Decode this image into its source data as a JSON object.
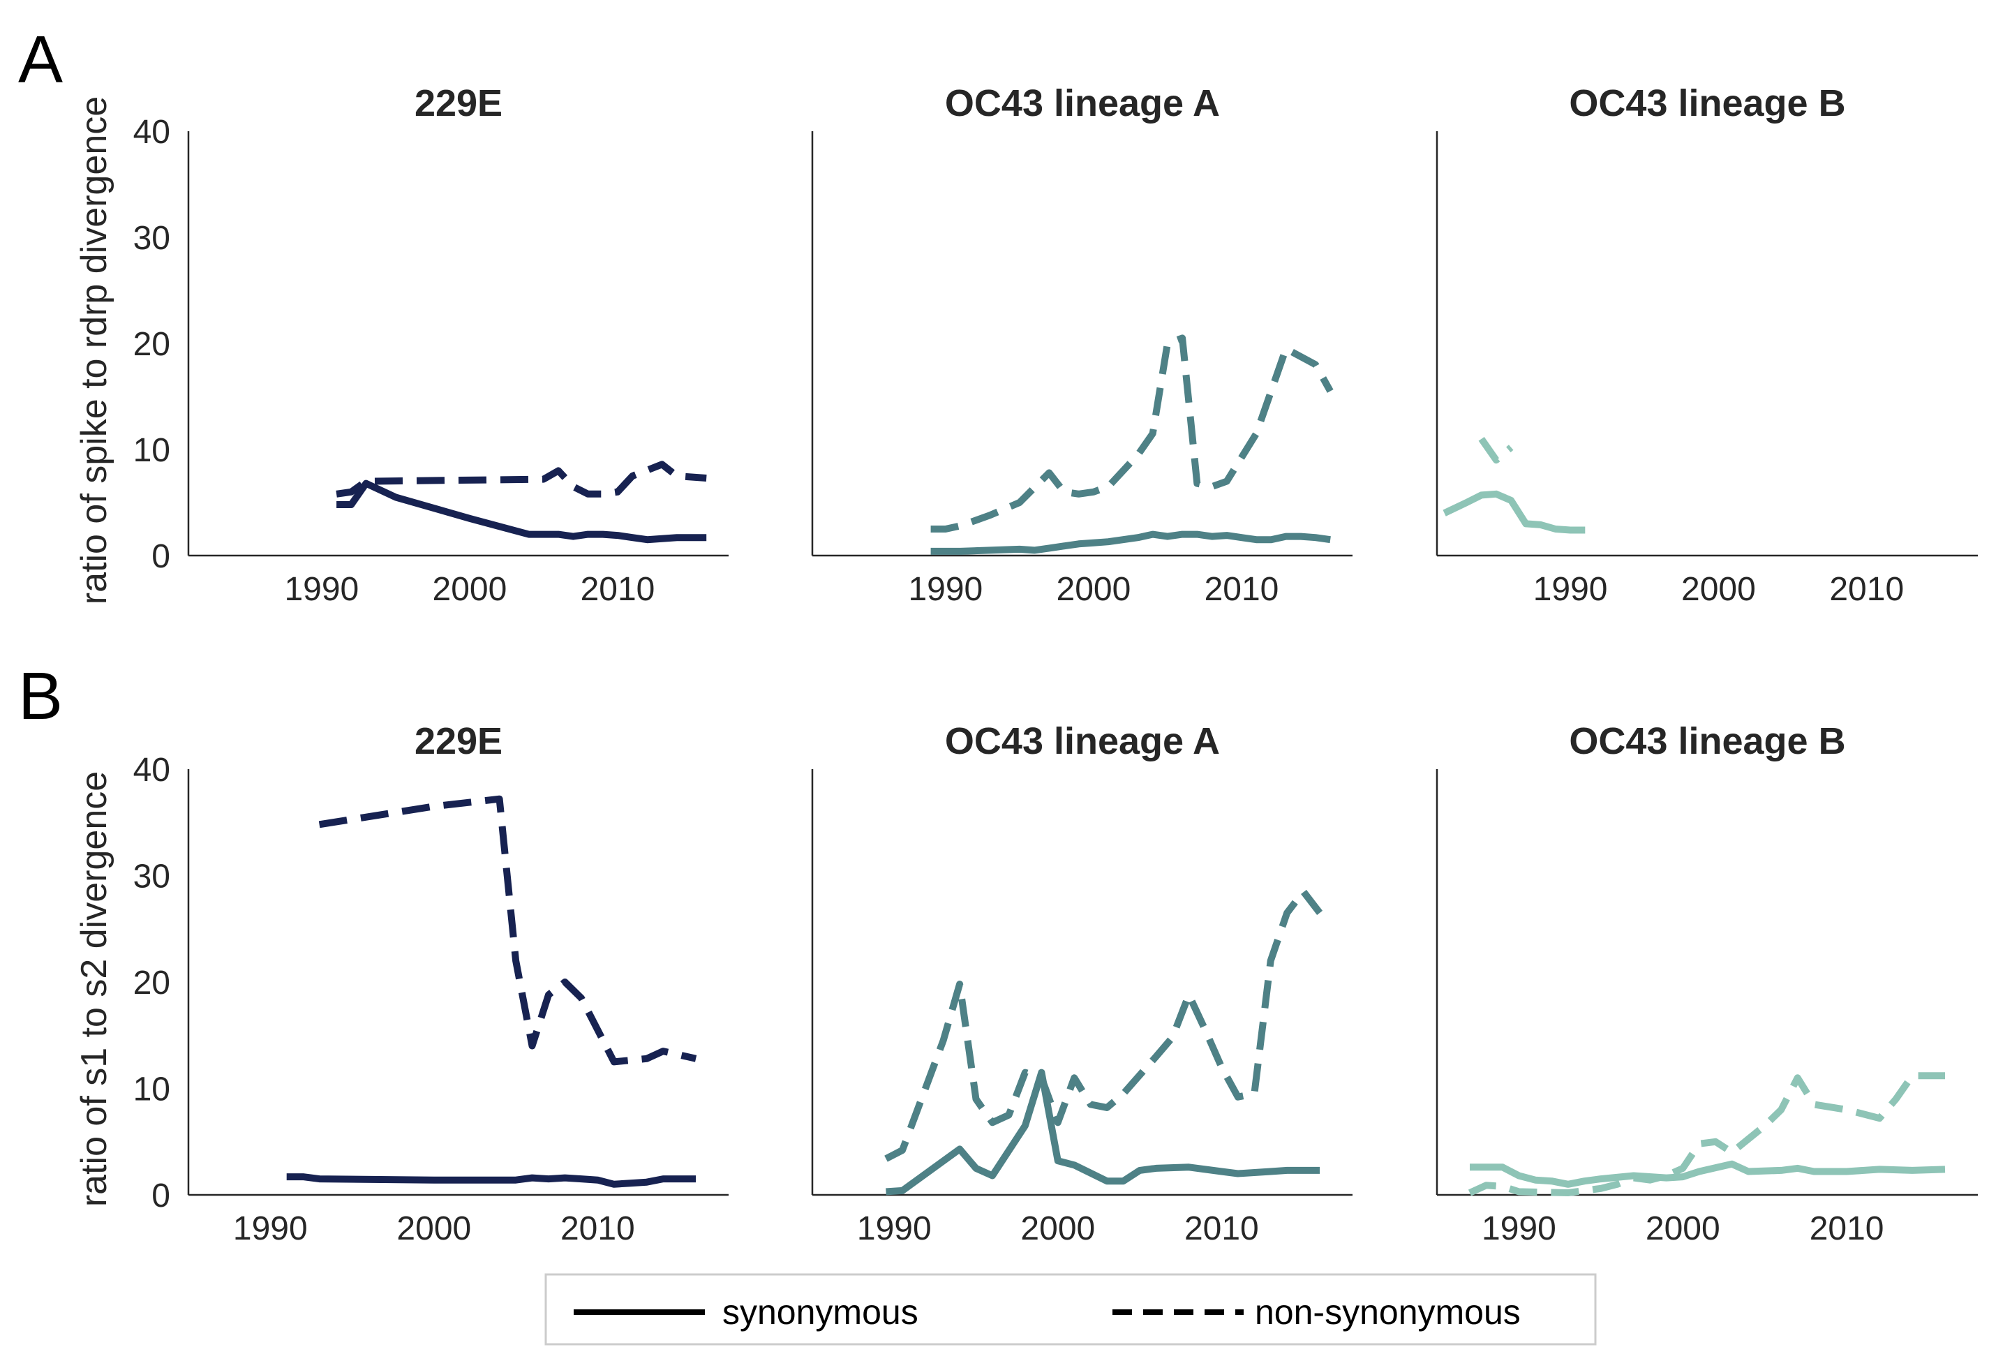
{
  "figure": {
    "panel_letters": [
      "A",
      "B"
    ],
    "legend": {
      "items": [
        {
          "label": "synonymous",
          "dash": "solid"
        },
        {
          "label": "non-synonymous",
          "dash": "dashed"
        }
      ],
      "placement": "bottom-center"
    }
  },
  "chart_data": [
    {
      "type": "line",
      "panel": "A",
      "title": "229E",
      "ylabel": "ratio of spike to rdrp divergence",
      "xlabel": "",
      "xlim": [
        1981,
        2017.5
      ],
      "ylim": [
        0,
        40
      ],
      "xticks": [
        1990,
        2000,
        2010
      ],
      "yticks": [
        0,
        10,
        20,
        30,
        40
      ],
      "color": "#172251",
      "grid": false,
      "series": [
        {
          "name": "synonymous",
          "dash": "solid",
          "points": [
            [
              1991,
              4.8
            ],
            [
              1992,
              4.8
            ],
            [
              1993,
              6.8
            ],
            [
              1995,
              5.5
            ],
            [
              2000,
              3.5
            ],
            [
              2004,
              2.0
            ],
            [
              2005,
              2.0
            ],
            [
              2006,
              2.0
            ],
            [
              2007,
              1.8
            ],
            [
              2008,
              2.0
            ],
            [
              2009,
              2.0
            ],
            [
              2010,
              1.9
            ],
            [
              2011,
              1.7
            ],
            [
              2012,
              1.5
            ],
            [
              2014,
              1.7
            ],
            [
              2016,
              1.7
            ]
          ]
        },
        {
          "name": "non-synonymous",
          "dash": "dashed",
          "points": [
            [
              1991,
              5.8
            ],
            [
              1992,
              6.0
            ],
            [
              1993,
              7.0
            ],
            [
              2005,
              7.2
            ],
            [
              2006,
              8.0
            ],
            [
              2007,
              6.5
            ],
            [
              2008,
              5.8
            ],
            [
              2009,
              5.8
            ],
            [
              2010,
              6.0
            ],
            [
              2011,
              7.5
            ],
            [
              2013,
              8.6
            ],
            [
              2014,
              7.5
            ],
            [
              2016,
              7.3
            ]
          ]
        }
      ]
    },
    {
      "type": "line",
      "panel": "A",
      "title": "OC43 lineage A",
      "xlim": [
        1981,
        2017.5
      ],
      "ylim": [
        0,
        40
      ],
      "xticks": [
        1990,
        2000,
        2010
      ],
      "color": "#4e8186",
      "grid": false,
      "series": [
        {
          "name": "synonymous",
          "dash": "solid",
          "points": [
            [
              1989,
              0.4
            ],
            [
              1991,
              0.4
            ],
            [
              1993,
              0.5
            ],
            [
              1995,
              0.6
            ],
            [
              1996,
              0.5
            ],
            [
              1997,
              0.7
            ],
            [
              1998,
              0.9
            ],
            [
              1999,
              1.1
            ],
            [
              2000,
              1.2
            ],
            [
              2001,
              1.3
            ],
            [
              2002,
              1.5
            ],
            [
              2003,
              1.7
            ],
            [
              2004,
              2.0
            ],
            [
              2005,
              1.8
            ],
            [
              2006,
              2.0
            ],
            [
              2007,
              2.0
            ],
            [
              2008,
              1.8
            ],
            [
              2009,
              1.9
            ],
            [
              2010,
              1.7
            ],
            [
              2011,
              1.5
            ],
            [
              2012,
              1.5
            ],
            [
              2013,
              1.8
            ],
            [
              2014,
              1.8
            ],
            [
              2015,
              1.7
            ],
            [
              2016,
              1.5
            ]
          ]
        },
        {
          "name": "non-synonymous",
          "dash": "dashed",
          "points": [
            [
              1989,
              2.5
            ],
            [
              1990,
              2.5
            ],
            [
              1991,
              2.8
            ],
            [
              1993,
              3.8
            ],
            [
              1995,
              5.0
            ],
            [
              1997,
              7.8
            ],
            [
              1998,
              6.0
            ],
            [
              1999,
              5.8
            ],
            [
              2000,
              6.0
            ],
            [
              2001,
              6.5
            ],
            [
              2003,
              9.5
            ],
            [
              2004,
              11.5
            ],
            [
              2005,
              20.0
            ],
            [
              2006,
              20.5
            ],
            [
              2007,
              6.8
            ],
            [
              2008,
              6.5
            ],
            [
              2009,
              7.0
            ],
            [
              2011,
              11.5
            ],
            [
              2013,
              19.5
            ],
            [
              2015,
              18.0
            ],
            [
              2016,
              15.5
            ]
          ]
        }
      ]
    },
    {
      "type": "line",
      "panel": "A",
      "title": "OC43 lineage B",
      "xlim": [
        1981,
        2017.5
      ],
      "ylim": [
        0,
        40
      ],
      "xticks": [
        1990,
        2000,
        2010
      ],
      "color": "#8ec4b6",
      "grid": false,
      "series": [
        {
          "name": "synonymous",
          "dash": "solid",
          "points": [
            [
              1981.5,
              4.0
            ],
            [
              1983,
              5.0
            ],
            [
              1984,
              5.7
            ],
            [
              1985,
              5.8
            ],
            [
              1986,
              5.2
            ],
            [
              1987,
              3.0
            ],
            [
              1988,
              2.9
            ],
            [
              1989,
              2.5
            ],
            [
              1990,
              2.4
            ],
            [
              1991,
              2.4
            ]
          ]
        },
        {
          "name": "non-synonymous",
          "dash": "dashed",
          "points": [
            [
              1984,
              11.0
            ],
            [
              1985,
              9.0
            ],
            [
              1986,
              10.2
            ]
          ]
        }
      ]
    },
    {
      "type": "line",
      "panel": "B",
      "title": "229E",
      "ylabel": "ratio of s1 to s2 divergence",
      "xlabel": "",
      "xlim": [
        1985,
        2018
      ],
      "ylim": [
        0,
        40
      ],
      "xticks": [
        1990,
        2000,
        2010
      ],
      "yticks": [
        0,
        10,
        20,
        30,
        40
      ],
      "color": "#172251",
      "grid": false,
      "series": [
        {
          "name": "synonymous",
          "dash": "solid",
          "points": [
            [
              1991,
              1.7
            ],
            [
              1992,
              1.7
            ],
            [
              1993,
              1.5
            ],
            [
              2000,
              1.4
            ],
            [
              2005,
              1.4
            ],
            [
              2006,
              1.6
            ],
            [
              2007,
              1.5
            ],
            [
              2008,
              1.6
            ],
            [
              2009,
              1.5
            ],
            [
              2010,
              1.4
            ],
            [
              2011,
              1.0
            ],
            [
              2012,
              1.1
            ],
            [
              2013,
              1.2
            ],
            [
              2014,
              1.5
            ],
            [
              2016,
              1.5
            ]
          ]
        },
        {
          "name": "non-synonymous",
          "dash": "dashed",
          "points": [
            [
              1993,
              34.8
            ],
            [
              2000,
              36.5
            ],
            [
              2004,
              37.2
            ],
            [
              2005,
              22.0
            ],
            [
              2006,
              14.0
            ],
            [
              2007,
              18.8
            ],
            [
              2008,
              20.0
            ],
            [
              2009,
              18.5
            ],
            [
              2010,
              15.5
            ],
            [
              2011,
              12.5
            ],
            [
              2013,
              12.8
            ],
            [
              2014,
              13.5
            ],
            [
              2016,
              12.8
            ]
          ]
        }
      ]
    },
    {
      "type": "line",
      "panel": "B",
      "title": "OC43 lineage A",
      "xlim": [
        1985,
        2018
      ],
      "ylim": [
        0,
        40
      ],
      "xticks": [
        1990,
        2000,
        2010
      ],
      "color": "#4e8186",
      "grid": false,
      "series": [
        {
          "name": "synonymous",
          "dash": "solid",
          "points": [
            [
              1989.5,
              0.3
            ],
            [
              1990.5,
              0.4
            ],
            [
              1994,
              4.3
            ],
            [
              1995,
              2.5
            ],
            [
              1996,
              1.8
            ],
            [
              1998,
              6.5
            ],
            [
              1999,
              11.5
            ],
            [
              2000,
              3.2
            ],
            [
              2001,
              2.8
            ],
            [
              2003,
              1.3
            ],
            [
              2004,
              1.3
            ],
            [
              2005,
              2.3
            ],
            [
              2006,
              2.5
            ],
            [
              2008,
              2.6
            ],
            [
              2010,
              2.2
            ],
            [
              2011,
              2.0
            ],
            [
              2013,
              2.2
            ],
            [
              2014,
              2.3
            ],
            [
              2016,
              2.3
            ]
          ]
        },
        {
          "name": "non-synonymous",
          "dash": "dashed",
          "points": [
            [
              1989.5,
              3.4
            ],
            [
              1990.5,
              4.2
            ],
            [
              1993,
              14.5
            ],
            [
              1994,
              19.8
            ],
            [
              1995,
              9.0
            ],
            [
              1996,
              6.8
            ],
            [
              1997,
              7.5
            ],
            [
              1998,
              11.5
            ],
            [
              1999,
              11.0
            ],
            [
              2000,
              6.8
            ],
            [
              2001,
              11.0
            ],
            [
              2002,
              8.5
            ],
            [
              2003,
              8.2
            ],
            [
              2004,
              9.5
            ],
            [
              2006,
              13.0
            ],
            [
              2007,
              14.8
            ],
            [
              2008,
              18.8
            ],
            [
              2009,
              15.5
            ],
            [
              2010,
              12.0
            ],
            [
              2011,
              9.2
            ],
            [
              2012,
              9.5
            ],
            [
              2013,
              22.0
            ],
            [
              2014,
              26.5
            ],
            [
              2015,
              28.5
            ],
            [
              2016,
              26.5
            ]
          ]
        }
      ]
    },
    {
      "type": "line",
      "panel": "B",
      "title": "OC43 lineage B",
      "xlim": [
        1985,
        2018
      ],
      "ylim": [
        0,
        40
      ],
      "xticks": [
        1990,
        2000,
        2010
      ],
      "color": "#8ec4b6",
      "grid": false,
      "series": [
        {
          "name": "synonymous",
          "dash": "solid",
          "points": [
            [
              1987,
              2.6
            ],
            [
              1989,
              2.6
            ],
            [
              1990,
              1.8
            ],
            [
              1991,
              1.4
            ],
            [
              1992,
              1.3
            ],
            [
              1993,
              1.0
            ],
            [
              1994,
              1.3
            ],
            [
              1995,
              1.5
            ],
            [
              1997,
              1.8
            ],
            [
              1999,
              1.6
            ],
            [
              2000,
              1.7
            ],
            [
              2001,
              2.2
            ],
            [
              2003,
              2.9
            ],
            [
              2004,
              2.2
            ],
            [
              2006,
              2.3
            ],
            [
              2007,
              2.5
            ],
            [
              2008,
              2.2
            ],
            [
              2010,
              2.2
            ],
            [
              2012,
              2.4
            ],
            [
              2014,
              2.3
            ],
            [
              2016,
              2.4
            ]
          ]
        },
        {
          "name": "non-synonymous",
          "dash": "dashed",
          "points": [
            [
              1987,
              0.2
            ],
            [
              1988,
              0.9
            ],
            [
              1989,
              0.8
            ],
            [
              1990,
              0.3
            ],
            [
              1993,
              0.2
            ],
            [
              1995,
              0.6
            ],
            [
              1996,
              1.0
            ],
            [
              1997,
              1.6
            ],
            [
              1998,
              1.4
            ],
            [
              1999,
              1.8
            ],
            [
              2000,
              2.5
            ],
            [
              2001,
              4.8
            ],
            [
              2002,
              5.0
            ],
            [
              2003,
              4.0
            ],
            [
              2005,
              6.5
            ],
            [
              2006,
              8.0
            ],
            [
              2007,
              11.0
            ],
            [
              2008,
              8.5
            ],
            [
              2010,
              8.0
            ],
            [
              2012,
              7.2
            ],
            [
              2013,
              9.0
            ],
            [
              2014,
              11.2
            ],
            [
              2016,
              11.2
            ]
          ]
        }
      ]
    }
  ]
}
